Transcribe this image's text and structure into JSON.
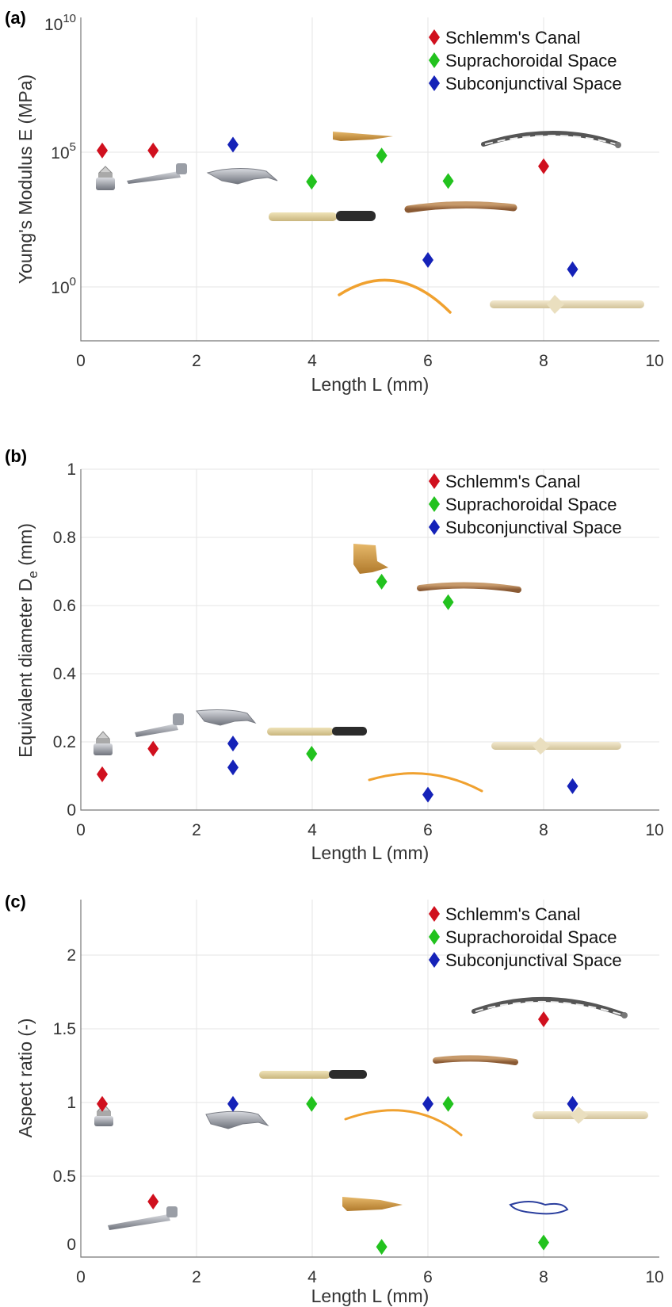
{
  "colors": {
    "schlemm": "#d0101e",
    "suprachoroidal": "#22c21e",
    "subconjunctival": "#1522b8"
  },
  "legend": [
    {
      "key": "schlemm",
      "label": "Schlemm's Canal"
    },
    {
      "key": "suprachoroidal",
      "label": "Suprachoroidal Space"
    },
    {
      "key": "subconjunctival",
      "label": "Subconjunctival Space"
    }
  ],
  "chart_data": [
    {
      "panel_label": "(a)",
      "type": "scatter",
      "xlabel": "Length  L (mm)",
      "ylabel": "Young's Modulus  E (MPa)",
      "xlim": [
        0,
        10
      ],
      "ylim_log10": [
        -2,
        10
      ],
      "yscale": "log",
      "x_ticks": [
        "0",
        "2",
        "4",
        "6",
        "8",
        "10"
      ],
      "y_ticks": [
        {
          "base": "10",
          "exp": "0",
          "value": 1
        },
        {
          "base": "10",
          "exp": "5",
          "value": 100000
        },
        {
          "base": "10",
          "exp": "10",
          "value": 10000000000
        }
      ],
      "grid": true,
      "legend_position": "top-right",
      "series": [
        {
          "name": "Schlemm's Canal",
          "key": "schlemm",
          "points": [
            {
              "x": 0.37,
              "y": 115000
            },
            {
              "x": 1.25,
              "y": 115000
            },
            {
              "x": 8.0,
              "y": 30000
            }
          ]
        },
        {
          "name": "Suprachoroidal Space",
          "key": "suprachoroidal",
          "points": [
            {
              "x": 3.99,
              "y": 8000
            },
            {
              "x": 5.2,
              "y": 75000
            },
            {
              "x": 6.35,
              "y": 8500
            }
          ]
        },
        {
          "name": "Subconjunctival Space",
          "key": "subconjunctival",
          "points": [
            {
              "x": 2.63,
              "y": 190000
            },
            {
              "x": 6.0,
              "y": 10
            },
            {
              "x": 8.5,
              "y": 4.5
            }
          ]
        }
      ]
    },
    {
      "panel_label": "(b)",
      "type": "scatter",
      "xlabel": "Length  L (mm)",
      "ylabel": "Equivalent diameter  D",
      "ylabel_sub": "e",
      "ylabel_unit": " (mm)",
      "xlim": [
        0,
        10
      ],
      "ylim": [
        0,
        1
      ],
      "yscale": "linear",
      "x_ticks": [
        "0",
        "2",
        "4",
        "6",
        "8",
        "10"
      ],
      "y_ticks": [
        {
          "label": "0",
          "value": 0
        },
        {
          "label": "0.2",
          "value": 0.2
        },
        {
          "label": "0.4",
          "value": 0.4
        },
        {
          "label": "0.6",
          "value": 0.6
        },
        {
          "label": "0.8",
          "value": 0.8
        },
        {
          "label": "1",
          "value": 1
        }
      ],
      "grid": true,
      "legend_position": "top-right",
      "series": [
        {
          "name": "Schlemm's Canal",
          "key": "schlemm",
          "points": [
            {
              "x": 0.37,
              "y": 0.105
            },
            {
              "x": 1.25,
              "y": 0.18
            }
          ]
        },
        {
          "name": "Suprachoroidal Space",
          "key": "suprachoroidal",
          "points": [
            {
              "x": 3.99,
              "y": 0.165
            },
            {
              "x": 5.2,
              "y": 0.67
            },
            {
              "x": 6.35,
              "y": 0.61
            }
          ]
        },
        {
          "name": "Subconjunctival Space",
          "key": "subconjunctival",
          "points": [
            {
              "x": 2.63,
              "y": 0.195
            },
            {
              "x": 2.63,
              "y": 0.125
            },
            {
              "x": 6.0,
              "y": 0.045
            },
            {
              "x": 8.5,
              "y": 0.07
            }
          ]
        }
      ]
    },
    {
      "panel_label": "(c)",
      "type": "scatter",
      "xlabel": "Length  L (mm)",
      "ylabel": "Aspect ratio (-)",
      "xlim": [
        0,
        10
      ],
      "ylim": [
        -0.05,
        2.4
      ],
      "yscale": "linear",
      "x_ticks": [
        "0",
        "2",
        "4",
        "6",
        "8",
        "10"
      ],
      "y_ticks": [
        {
          "label": "0",
          "value": 0
        },
        {
          "label": "0.5",
          "value": 0.5
        },
        {
          "label": "1",
          "value": 1
        },
        {
          "label": "1.5",
          "value": 1.5
        },
        {
          "label": "2",
          "value": 2
        }
      ],
      "grid": true,
      "legend_position": "top-right",
      "series": [
        {
          "name": "Schlemm's Canal",
          "key": "schlemm",
          "points": [
            {
              "x": 0.37,
              "y": 1.0
            },
            {
              "x": 1.25,
              "y": 0.33
            },
            {
              "x": 8.0,
              "y": 1.58
            }
          ]
        },
        {
          "name": "Suprachoroidal Space",
          "key": "suprachoroidal",
          "points": [
            {
              "x": 3.99,
              "y": 1.0
            },
            {
              "x": 5.2,
              "y": 0.02
            },
            {
              "x": 6.35,
              "y": 1.0
            },
            {
              "x": 8.0,
              "y": 0.05
            }
          ]
        },
        {
          "name": "Subconjunctival Space",
          "key": "subconjunctival",
          "points": [
            {
              "x": 2.63,
              "y": 1.0
            },
            {
              "x": 6.0,
              "y": 1.0
            },
            {
              "x": 8.5,
              "y": 1.0
            }
          ]
        }
      ]
    }
  ]
}
